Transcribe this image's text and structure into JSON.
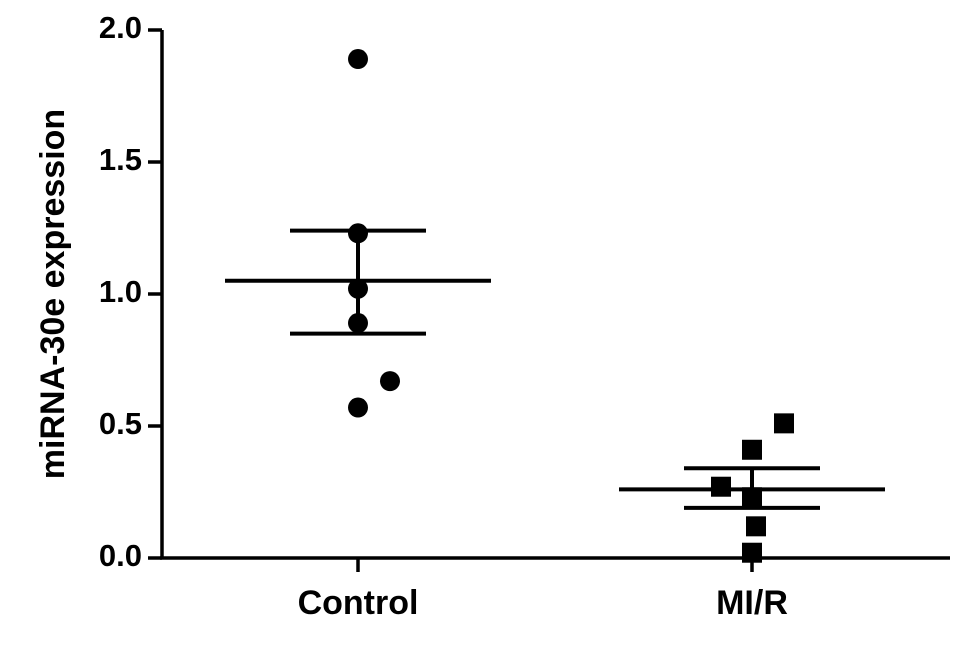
{
  "chart_data": {
    "type": "scatter",
    "title": "",
    "xlabel": "",
    "ylabel": "miRNA-30e expression",
    "ylim": [
      0,
      2.0
    ],
    "yticks": [
      0.0,
      0.5,
      1.0,
      1.5,
      2.0
    ],
    "ytick_labels": [
      "0.0",
      "0.5",
      "1.0",
      "1.5",
      "2.0"
    ],
    "categories": [
      "Control",
      "MI/R"
    ],
    "grid": false,
    "legend": "none",
    "groups": [
      {
        "category": "Control",
        "marker": "circle",
        "points": [
          1.89,
          1.23,
          1.02,
          0.89,
          0.67,
          0.57
        ],
        "mean": 1.05,
        "error_upper": 1.24,
        "error_lower": 0.85
      },
      {
        "category": "MI/R",
        "marker": "square",
        "points": [
          0.51,
          0.41,
          0.27,
          0.23,
          0.12,
          0.02
        ],
        "mean": 0.26,
        "error_upper": 0.34,
        "error_lower": 0.19
      }
    ],
    "colors": {
      "marks": "#000000",
      "background": "#ffffff"
    }
  }
}
